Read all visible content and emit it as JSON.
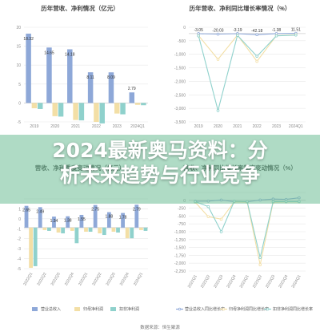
{
  "colors": {
    "revenue": "#8ea8d8",
    "profit": "#f3dfa6",
    "deducted": "#8fd1cc",
    "grid": "#e8e8e8",
    "axis_text": "#8a8a8a",
    "title_text": "#444444",
    "band": "#6ebe96"
  },
  "overlay": {
    "line1": "2024最新奥马资料：分",
    "line2": "析未来趋势与行业竞争"
  },
  "legend": {
    "revenue": "营业总收入",
    "profit": "归母净利润",
    "deducted": "扣非净利润",
    "revenue_growth": "营业总收入同比增长率",
    "profit_growth": "归母净利润同比增长率",
    "deducted_growth": "扣非净利润同比增长率"
  },
  "source": "数据来源：恒生聚源",
  "chart_data": [
    {
      "type": "bar",
      "title": "历年营收、净利情况（亿元）",
      "categories": [
        "2019",
        "2020",
        "2021",
        "2022",
        "2023",
        "2024Q1"
      ],
      "series": [
        {
          "name": "营业总收入",
          "values": [
            18.32,
            14.65,
            14.18,
            8.11,
            8.09,
            2.79
          ]
        },
        {
          "name": "归母净利润",
          "values": [
            -1.4,
            -3.5,
            -4.5,
            -5.0,
            -2.8,
            -0.5
          ]
        },
        {
          "name": "扣非净利润",
          "values": [
            -1.6,
            -3.6,
            -4.6,
            -5.4,
            -3.0,
            -0.6
          ]
        }
      ],
      "data_labels": [
        "18.32",
        "14.65",
        "14.18",
        "8.11",
        "8.09",
        "2.79"
      ],
      "yticks": [
        "20",
        "15",
        "10",
        "5",
        "0",
        "-5"
      ],
      "ylim": [
        -5,
        20
      ]
    },
    {
      "type": "line",
      "title": "历年营收、净利同比增长率情况（%）",
      "categories": [
        "2019",
        "2020",
        "2021",
        "2022",
        "2023",
        "2024Q1"
      ],
      "series": [
        {
          "name": "营业总收入同比增长率",
          "values": [
            -3.05,
            -20.03,
            -3.19,
            -42.18,
            -1.38,
            11.51
          ]
        },
        {
          "name": "归母净利润同比增长率",
          "values": [
            -80,
            -1020,
            -60,
            -1100,
            -80,
            -50
          ]
        },
        {
          "name": "扣非净利润同比增长率",
          "values": [
            -90,
            -3050,
            -70,
            -900,
            -90,
            -60
          ]
        }
      ],
      "data_labels": [
        "-3.05",
        "-20.03",
        "-3.19",
        "-42.18",
        "-1.38",
        "11.51"
      ],
      "yticks": [
        "0",
        "-500",
        "-1,000",
        "-1,500",
        "-2,000",
        "-2,500",
        "-3,000",
        "-3,500"
      ],
      "ylim": [
        -3500,
        250
      ]
    },
    {
      "type": "bar",
      "title": "营收、净利季度变动情况（亿元）",
      "categories": [
        "2022Q1",
        "2022Q2",
        "2022Q3",
        "2022Q4",
        "2023Q1",
        "2023Q2",
        "2023Q3",
        "2023Q4",
        "2024Q1"
      ],
      "series": [
        {
          "name": "营业总收入",
          "values": [
            2.65,
            2.49,
            1.34,
            1.38,
            1.55,
            2.75,
            1.88,
            1.78,
            2.79
          ]
        },
        {
          "name": "归母净利润",
          "values": [
            -4.9,
            -0.3,
            -0.6,
            -0.4,
            -0.5,
            -0.7,
            -0.5,
            -1.3,
            -0.3
          ]
        },
        {
          "name": "扣非净利润",
          "values": [
            -4.7,
            -0.4,
            -0.7,
            -1.9,
            -0.5,
            -0.9,
            -0.6,
            -1.3,
            -0.4
          ]
        }
      ],
      "data_labels": [
        "2.65",
        "2.49",
        "1.34",
        "1.38",
        "1.55",
        "2.75",
        "1.88",
        "1.78",
        "2.79"
      ],
      "yticks": [
        "",
        "1",
        "0",
        "-1",
        "-2",
        "-3",
        "-4",
        "-5"
      ],
      "ylim": [
        -5,
        3.5
      ]
    },
    {
      "type": "line",
      "title": "营收、净利同比增长率季度变动情况（%）",
      "categories": [
        "2022Q1",
        "2022Q2",
        "2022Q3",
        "2022Q4",
        "2023Q1",
        "2023Q2",
        "2023Q3",
        "2023Q4",
        "2024Q1"
      ],
      "series": [
        {
          "name": "营业总收入同比增长率",
          "values": [
            -30,
            -25,
            10,
            -40,
            -45,
            10,
            40,
            30,
            80
          ]
        },
        {
          "name": "归母净利润同比增长率",
          "values": [
            -60,
            -520,
            -600,
            -50,
            -60,
            -2050,
            -60,
            -50,
            -50
          ]
        },
        {
          "name": "扣非净利润同比增长率",
          "values": [
            -40,
            -200,
            -1000,
            -30,
            -40,
            -1820,
            -40,
            -40,
            -40
          ]
        }
      ],
      "yticks": [
        "",
        "0",
        "-250",
        "-500",
        "-750",
        "-1,000",
        "-1,250",
        "-1,500",
        "-1,750",
        "-2,000",
        "-2,250"
      ],
      "ylim": [
        -2250,
        250
      ]
    }
  ]
}
